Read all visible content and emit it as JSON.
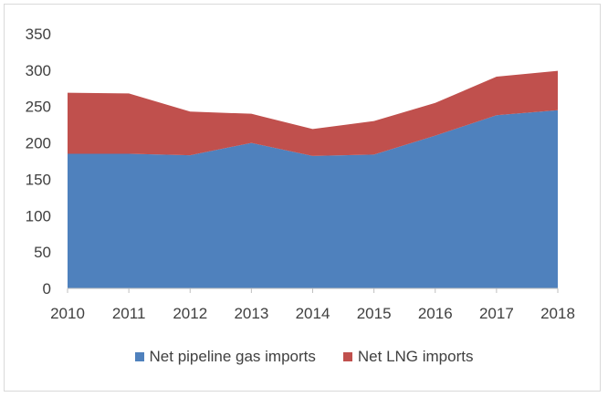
{
  "chart_data": {
    "type": "area",
    "stacked": true,
    "title": "",
    "xlabel": "",
    "ylabel": "",
    "x": [
      "2010",
      "2011",
      "2012",
      "2013",
      "2014",
      "2015",
      "2016",
      "2017",
      "2018"
    ],
    "ylim": [
      0,
      350
    ],
    "yticks": [
      0,
      50,
      100,
      150,
      200,
      250,
      300,
      350
    ],
    "grid": false,
    "legend_position": "bottom",
    "series": [
      {
        "name": "Net pipeline gas imports",
        "color": "#4f81bd",
        "values": [
          185,
          185,
          183,
          200,
          182,
          184,
          210,
          238,
          245
        ]
      },
      {
        "name": "Net LNG imports",
        "color": "#c0504d",
        "values": [
          84,
          83,
          60,
          40,
          37,
          46,
          45,
          53,
          54
        ]
      }
    ]
  }
}
